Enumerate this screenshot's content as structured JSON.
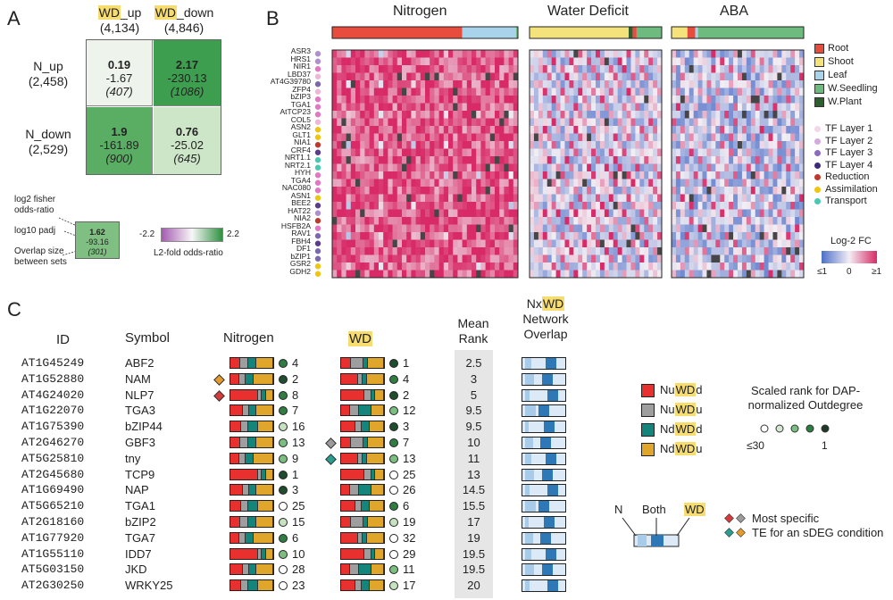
{
  "panels": {
    "a": "A",
    "b": "B",
    "c": "C"
  },
  "panel_a": {
    "col_headers": [
      {
        "hl": "WD",
        "rest": "_up",
        "count": "(4,134)"
      },
      {
        "hl": "WD",
        "rest": "_down",
        "count": "(4,846)"
      }
    ],
    "row_headers": [
      {
        "name": "N_up",
        "count": "(2,458)"
      },
      {
        "name": "N_down",
        "count": "(2,529)"
      }
    ],
    "cells": [
      {
        "odds": "0.19",
        "padj": "-1.67",
        "overlap": "(407)",
        "color": "#eef3ec"
      },
      {
        "odds": "2.17",
        "padj": "-230.13",
        "overlap": "(1086)",
        "color": "#3d9e4f"
      },
      {
        "odds": "1.9",
        "padj": "-161.89",
        "overlap": "(900)",
        "color": "#5aae64"
      },
      {
        "odds": "0.76",
        "padj": "-25.02",
        "overlap": "(645)",
        "color": "#cde6c8"
      }
    ],
    "key": {
      "labels": [
        "log2 fisher odds-ratio",
        "log10 padj",
        "Overlap size between sets"
      ],
      "odds": "1.62",
      "padj": "-93.16",
      "overlap": "(301)"
    },
    "colorbar": {
      "min": "-2.2",
      "max": "2.2",
      "label": "L2-fold odds-ratio",
      "low": "#a45bb0",
      "mid": "#f7f7f7",
      "high": "#2e9140"
    }
  },
  "panel_b": {
    "titles": [
      "Nitrogen",
      "Water Deficit",
      "ABA"
    ],
    "genes": [
      "ASR3",
      "HRS1",
      "NIR1",
      "LBD37",
      "AT4G39780",
      "ZFP4",
      "bZIP3",
      "TGA1",
      "AtTCP23",
      "COL5",
      "ASN2",
      "GLT1",
      "NIA1",
      "CRF4",
      "NRT1.1",
      "NRT2.1",
      "HYH",
      "TGA4",
      "NAC080",
      "ASN1",
      "BEE2",
      "HAT22",
      "NIA2",
      "HSFB2A",
      "RAV1",
      "FBH4",
      "DF1",
      "bZIP1",
      "GSR2",
      "GDH2"
    ],
    "gene_dots": [
      "#b18fcf",
      "#b18fcf",
      "#e377c2",
      "#f0b6d8",
      "#7b68b0",
      "#f0b6d8",
      "#e377c2",
      "#e377c2",
      "#e377c2",
      "#f0b6d8",
      "#f1c40f",
      "#f1c40f",
      "#c0392b",
      "#5b3b8c",
      "#48c9b0",
      "#48c9b0",
      "#e377c2",
      "#e377c2",
      "#e377c2",
      "#f1c40f",
      "#5b3b8c",
      "#b18fcf",
      "#c0392b",
      "#e377c2",
      "#7b68b0",
      "#5b3b8c",
      "#7b68b0",
      "#7b68b0",
      "#f1c40f",
      "#f1c40f"
    ],
    "tissue_legend": [
      {
        "label": "Root",
        "color": "#e74c3c"
      },
      {
        "label": "Shoot",
        "color": "#f4e27a"
      },
      {
        "label": "Leaf",
        "color": "#a9d3ea"
      },
      {
        "label": "W.Seedling",
        "color": "#6dbb7e"
      },
      {
        "label": "W.Plant",
        "color": "#2e5f2e"
      }
    ],
    "category_legend": [
      {
        "label": "TF Layer 1",
        "color": "#f3d6e8"
      },
      {
        "label": "TF Layer 2",
        "color": "#d6a8e0"
      },
      {
        "label": "TF Layer 3",
        "color": "#8b6bbf"
      },
      {
        "label": "TF Layer 4",
        "color": "#3e2a7a"
      },
      {
        "label": "Reduction",
        "color": "#c0392b"
      },
      {
        "label": "Assimilation",
        "color": "#f1c40f"
      },
      {
        "label": "Transport",
        "color": "#48c9b0"
      }
    ],
    "fc_legend": {
      "title": "Log-2 FC",
      "ticks": [
        "≤1",
        "0",
        "≥1"
      ]
    }
  },
  "panel_c": {
    "headers": {
      "id": "ID",
      "symbol": "Symbol",
      "nitrogen": "Nitrogen",
      "wd": "WD",
      "mean_rank": "Mean Rank",
      "network_hl": "WD",
      "network_pre": "Nx",
      "network_rest": "Network Overlap"
    },
    "rows": [
      {
        "id": "AT1G45249",
        "symbol": "ABF2",
        "n_rank": "4",
        "wd_rank": "1",
        "mean": "2.5"
      },
      {
        "id": "AT1G52880",
        "symbol": "NAM",
        "n_rank": "2",
        "wd_rank": "4",
        "mean": "3"
      },
      {
        "id": "AT4G24020",
        "symbol": "NLP7",
        "n_rank": "8",
        "wd_rank": "2",
        "mean": "5"
      },
      {
        "id": "AT1G22070",
        "symbol": "TGA3",
        "n_rank": "7",
        "wd_rank": "12",
        "mean": "9.5"
      },
      {
        "id": "AT1G75390",
        "symbol": "bZIP44",
        "n_rank": "16",
        "wd_rank": "3",
        "mean": "9.5"
      },
      {
        "id": "AT2G46270",
        "symbol": "GBF3",
        "n_rank": "13",
        "wd_rank": "7",
        "mean": "10"
      },
      {
        "id": "AT5G25810",
        "symbol": "tny",
        "n_rank": "9",
        "wd_rank": "13",
        "mean": "11"
      },
      {
        "id": "AT2G45680",
        "symbol": "TCP9",
        "n_rank": "1",
        "wd_rank": "25",
        "mean": "13"
      },
      {
        "id": "AT1G69490",
        "symbol": "NAP",
        "n_rank": "3",
        "wd_rank": "26",
        "mean": "14.5"
      },
      {
        "id": "AT5G65210",
        "symbol": "TGA1",
        "n_rank": "25",
        "wd_rank": "6",
        "mean": "15.5"
      },
      {
        "id": "AT2G18160",
        "symbol": "bZIP2",
        "n_rank": "15",
        "wd_rank": "19",
        "mean": "17"
      },
      {
        "id": "AT1G77920",
        "symbol": "TGA7",
        "n_rank": "6",
        "wd_rank": "32",
        "mean": "19"
      },
      {
        "id": "AT1G55110",
        "symbol": "IDD7",
        "n_rank": "10",
        "wd_rank": "29",
        "mean": "19.5"
      },
      {
        "id": "AT5G03150",
        "symbol": "JKD",
        "n_rank": "28",
        "wd_rank": "11",
        "mean": "19.5"
      },
      {
        "id": "AT2G30250",
        "symbol": "WRKY25",
        "n_rank": "23",
        "wd_rank": "17",
        "mean": "20"
      }
    ],
    "marker_rows": [
      {
        "row": 1,
        "side": "n",
        "color": "#e39b2d"
      },
      {
        "row": 2,
        "side": "n",
        "color": "#d63b3b"
      },
      {
        "row": 5,
        "side": "wd",
        "color": "#9b9b9b"
      },
      {
        "row": 6,
        "side": "wd",
        "color": "#2a9d8f"
      }
    ],
    "bar_legend": [
      {
        "pre": "Nu",
        "hl": "WD",
        "post": "d",
        "color": "#e8312f"
      },
      {
        "pre": "Nu",
        "hl": "WD",
        "post": "u",
        "color": "#9e9e9e"
      },
      {
        "pre": "Nd",
        "hl": "WD",
        "post": "d",
        "color": "#13857a"
      },
      {
        "pre": "Nd",
        "hl": "WD",
        "post": "u",
        "color": "#e0a62b"
      }
    ],
    "scaled_rank": {
      "title": "Scaled rank for DAP-normalized Outdegree",
      "low": "≤30",
      "high": "1"
    },
    "overlap_legend": {
      "n": "N",
      "both": "Both",
      "wd": "WD"
    },
    "marker_legend": [
      "Most specific",
      "TE for an sDEG condition"
    ]
  }
}
